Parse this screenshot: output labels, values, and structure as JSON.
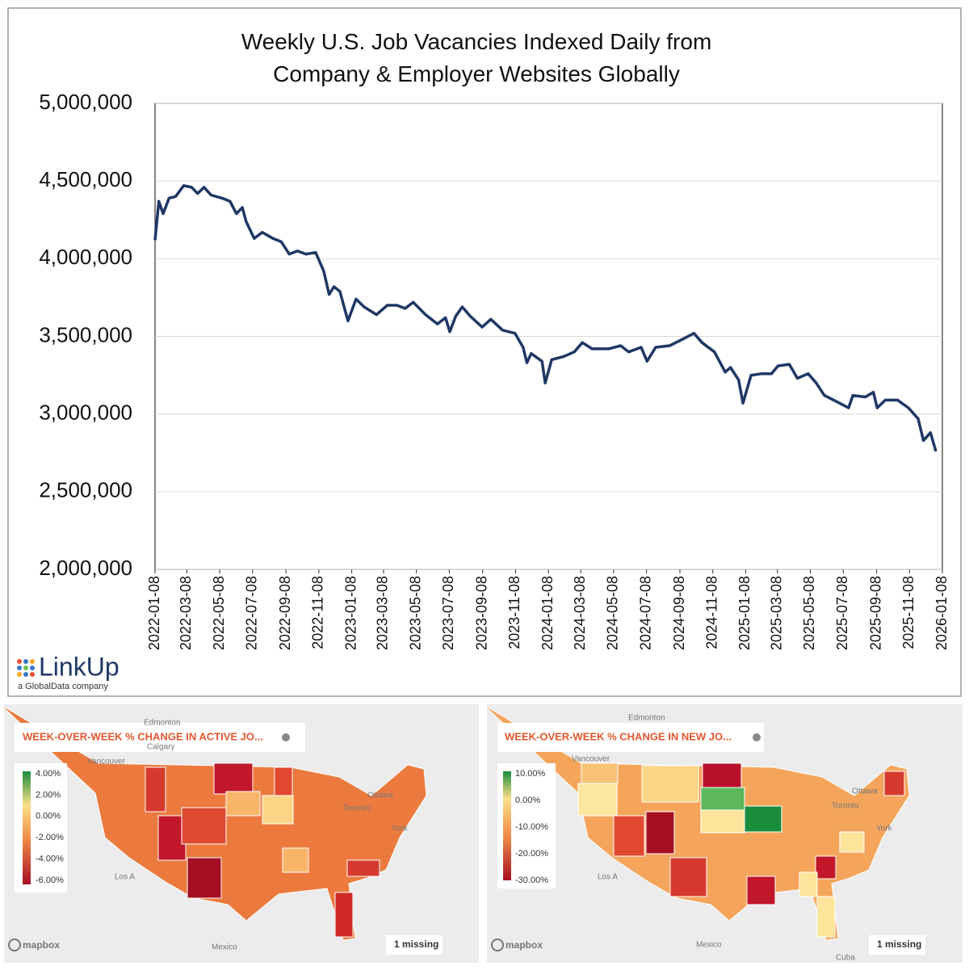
{
  "chart_data": {
    "type": "line",
    "title": "Weekly U.S. Job Vacancies Indexed Daily from\nCompany & Employer Websites Globally",
    "x": [
      "2022-01-08",
      "2022-01-15",
      "2022-01-23",
      "2022-02-03",
      "2022-02-15",
      "2022-03-02",
      "2022-03-17",
      "2022-03-28",
      "2022-04-09",
      "2022-04-22",
      "2022-05-12",
      "2022-05-27",
      "2022-06-08",
      "2022-06-19",
      "2022-06-26",
      "2022-07-11",
      "2022-07-26",
      "2022-08-15",
      "2022-08-30",
      "2022-09-14",
      "2022-09-29",
      "2022-10-15",
      "2022-11-02",
      "2022-11-17",
      "2022-11-27",
      "2022-12-06",
      "2022-12-17",
      "2023-01-01",
      "2023-01-16",
      "2023-01-31",
      "2023-02-23",
      "2023-03-15",
      "2023-04-02",
      "2023-04-17",
      "2023-05-02",
      "2023-05-25",
      "2023-06-16",
      "2023-07-01",
      "2023-07-09",
      "2023-07-20",
      "2023-08-01",
      "2023-08-16",
      "2023-09-07",
      "2023-09-23",
      "2023-10-15",
      "2023-11-07",
      "2023-11-22",
      "2023-11-29",
      "2023-12-07",
      "2023-12-27",
      "2024-01-02",
      "2024-01-14",
      "2024-02-05",
      "2024-02-25",
      "2024-03-11",
      "2024-03-29",
      "2024-04-29",
      "2024-05-21",
      "2024-06-05",
      "2024-06-28",
      "2024-07-09",
      "2024-07-25",
      "2024-08-20",
      "2024-09-12",
      "2024-10-04",
      "2024-10-19",
      "2024-11-11",
      "2024-12-01",
      "2024-12-11",
      "2024-12-26",
      "2025-01-03",
      "2025-01-18",
      "2025-02-07",
      "2025-02-25",
      "2025-03-09",
      "2025-03-30",
      "2025-04-14",
      "2025-05-04",
      "2025-05-19",
      "2025-06-03",
      "2025-06-26",
      "2025-07-18",
      "2025-07-26",
      "2025-08-18",
      "2025-09-02",
      "2025-09-09",
      "2025-09-24",
      "2025-10-17",
      "2025-11-06",
      "2025-11-24",
      "2025-12-04",
      "2025-12-17",
      "2025-12-27"
    ],
    "values": [
      4120000,
      4370000,
      4290000,
      4390000,
      4400000,
      4470000,
      4460000,
      4420000,
      4460000,
      4410000,
      4390000,
      4370000,
      4290000,
      4330000,
      4240000,
      4130000,
      4170000,
      4130000,
      4110000,
      4030000,
      4050000,
      4030000,
      4040000,
      3920000,
      3770000,
      3820000,
      3790000,
      3600000,
      3740000,
      3690000,
      3640000,
      3700000,
      3700000,
      3680000,
      3720000,
      3640000,
      3580000,
      3620000,
      3530000,
      3630000,
      3690000,
      3630000,
      3560000,
      3610000,
      3540000,
      3520000,
      3430000,
      3330000,
      3390000,
      3340000,
      3200000,
      3350000,
      3370000,
      3400000,
      3460000,
      3420000,
      3420000,
      3440000,
      3400000,
      3430000,
      3340000,
      3430000,
      3440000,
      3480000,
      3520000,
      3460000,
      3400000,
      3270000,
      3300000,
      3220000,
      3070000,
      3250000,
      3260000,
      3260000,
      3310000,
      3320000,
      3230000,
      3260000,
      3200000,
      3120000,
      3080000,
      3040000,
      3120000,
      3110000,
      3140000,
      3040000,
      3090000,
      3090000,
      3040000,
      2970000,
      2830000,
      2880000,
      2760000
    ],
    "color": "#1f3864",
    "xlim": [
      "2022-01-08",
      "2026-01-08"
    ],
    "xticks": [
      "2022-01-08",
      "2022-03-08",
      "2022-05-08",
      "2022-07-08",
      "2022-09-08",
      "2022-11-08",
      "2023-01-08",
      "2023-03-08",
      "2023-05-08",
      "2023-07-08",
      "2023-09-08",
      "2023-11-08",
      "2024-01-08",
      "2024-03-08",
      "2024-05-08",
      "2024-07-08",
      "2024-09-08",
      "2024-11-08",
      "2025-01-08",
      "2025-03-08",
      "2025-05-08",
      "2025-07-08",
      "2025-09-08",
      "2025-11-08",
      "2026-01-08"
    ],
    "ylim": [
      2000000,
      5000000
    ],
    "yticks": [
      {
        "value": 2000000,
        "label": "2,000,000"
      },
      {
        "value": 2500000,
        "label": "2,500,000"
      },
      {
        "value": 3000000,
        "label": "3,000,000"
      },
      {
        "value": 3500000,
        "label": "3,500,000"
      },
      {
        "value": 4000000,
        "label": "4,000,000"
      },
      {
        "value": 4500000,
        "label": "4,500,000"
      },
      {
        "value": 5000000,
        "label": "5,000,000"
      }
    ],
    "grid": true,
    "logo": {
      "name": "LinkUp",
      "tagline": "a GlobalData company"
    }
  },
  "maps": [
    {
      "title": "WEEK-OVER-WEEK % CHANGE IN ACTIVE JO...",
      "legend": [
        "4.00%",
        "2.00%",
        "0.00%",
        "-2.00%",
        "-4.00%",
        "-6.00%"
      ],
      "missing": "1 missing",
      "brand": "mapbox",
      "places": [
        "Edmonton",
        "Calgary",
        "Vancouver",
        "Ottawa",
        "Toronto",
        "York",
        "Los A",
        "Mexico"
      ]
    },
    {
      "title": "WEEK-OVER-WEEK % CHANGE IN NEW JO...",
      "legend": [
        "10.00%",
        "0.00%",
        "-10.00%",
        "-20.00%",
        "-30.00%"
      ],
      "missing": "1 missing",
      "brand": "mapbox",
      "places": [
        "Edmonton",
        "Vancouver",
        "Ottawa",
        "Toronto",
        "York",
        "Los A",
        "Mexico",
        "Cuba"
      ]
    }
  ]
}
